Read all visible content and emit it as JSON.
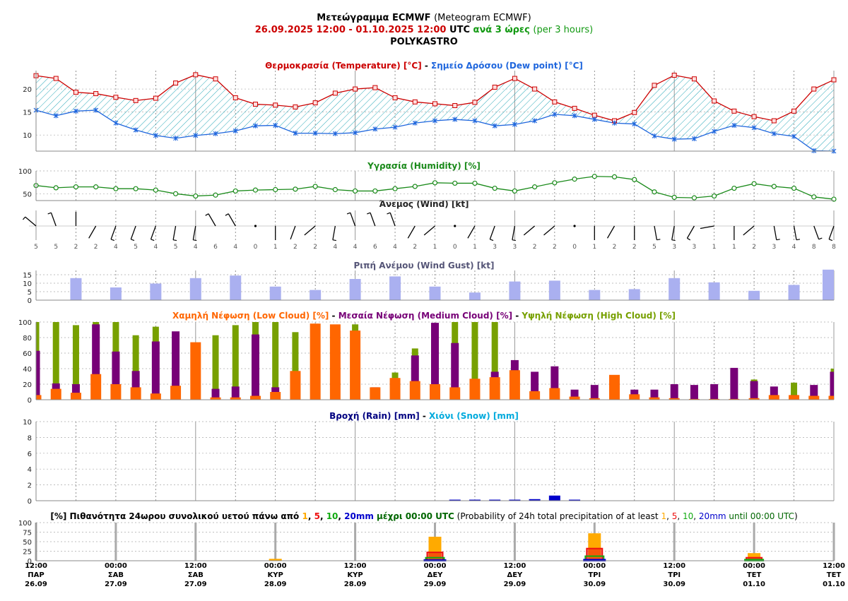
{
  "header": {
    "line1_bold": "Μετεώγραμμα ECMWF",
    "line1_rest": "(Meteogram ECMWF)",
    "line2_period": "26.09.2025 12:00 - 01.10.2025 12:00",
    "line2_utc": "UTC",
    "line2_step_gr": "ανά 3 ώρες",
    "line2_step_en": "(per 3 hours)",
    "location": "POLYKASTRO"
  },
  "panels": {
    "temperature": {
      "title_a": "Θερμοκρασία (Temperature) [°C]",
      "sep": " - ",
      "title_b": "Σημείο Δρόσου (Dew point) [°C]"
    },
    "humidity": {
      "title": "Υγρασία (Humidity) [%]"
    },
    "wind": {
      "title": "Άνεμος (Wind) [kt]"
    },
    "gust": {
      "title": "Ριπή Ανέμου (Wind Gust) [kt]"
    },
    "cloud": {
      "title_low": "Χαμηλή Νέφωση (Low Cloud) [%]",
      "title_mid": "Μεσαία Νέφωση (Medium Cloud) [%]",
      "title_high": "Υψηλή Νέφωση (High Cloud) [%]",
      "sep": " - "
    },
    "rain": {
      "title_rain": "Βροχή (Rain) [mm]",
      "sep": " - ",
      "title_snow": "Χιόνι (Snow) [mm]"
    },
    "prob": {
      "p1": "[%] Πιθανότητα 24ωρου συνολικού υετού πάνω από ",
      "t1": "1",
      "c1": ", ",
      "t5": "5",
      "c2": ", ",
      "t10": "10",
      "c3": ", ",
      "t20": "20mm",
      "p2": " μέχρι 00:00 UTC",
      "p3": " (Probability of 24h total precipitation of at least ",
      "e1": "1",
      "ec1": ", ",
      "e5": "5",
      "ec2": ", ",
      "e10": "10",
      "ec3": ", ",
      "e20": "20mm",
      "e_until": " until 00:00 UTC",
      "p4": ")"
    }
  },
  "colors": {
    "temperature": "#cc0000",
    "dewpoint": "#1f66dd",
    "hatch": "#2aa8b8",
    "humidity": "#1a8a1a",
    "gust": "#aab0f0",
    "low_cloud": "#ff6600",
    "medium_cloud": "#770077",
    "high_cloud": "#77a000",
    "rain": "#0000cc",
    "snow": "#00aadd",
    "p1": "#ffaa00",
    "p5": "#ee1111",
    "p10": "#11aa11",
    "p20": "#0000cc"
  },
  "chart_data": [
    {
      "type": "line",
      "title": "Θερμοκρασία (Temperature) [°C] - Σημείο Δρόσου (Dew point) [°C]",
      "step_hours": 3,
      "ylim": [
        6.5,
        24
      ],
      "yticks": [
        10,
        15,
        20
      ],
      "series": [
        {
          "name": "Θερμοκρασία (Temperature) [°C]",
          "values": [
            22.9,
            22.3,
            19.3,
            19.0,
            18.2,
            17.5,
            18.0,
            21.3,
            23.1,
            22.2,
            18.1,
            16.7,
            16.5,
            16.1,
            17.0,
            19.1,
            20.0,
            20.3,
            18.1,
            17.2,
            16.8,
            16.4,
            17.1,
            20.4,
            22.3,
            20.0,
            17.2,
            15.8,
            14.3,
            13.1,
            14.9,
            20.8,
            23.0,
            22.2,
            17.4,
            15.2,
            14.0,
            13.1,
            15.2,
            20.0,
            22.0
          ]
        },
        {
          "name": "Σημείο Δρόσου (Dew point) [°C]",
          "values": [
            15.4,
            14.2,
            15.2,
            15.4,
            12.6,
            11.1,
            9.9,
            9.3,
            9.9,
            10.3,
            10.9,
            12.0,
            12.1,
            10.4,
            10.4,
            10.3,
            10.5,
            11.3,
            11.7,
            12.6,
            13.1,
            13.4,
            13.1,
            12.0,
            12.3,
            13.1,
            14.5,
            14.2,
            13.4,
            12.6,
            12.4,
            9.8,
            9.1,
            9.2,
            10.8,
            12.1,
            11.6,
            10.3,
            9.7,
            6.6,
            6.5
          ]
        }
      ]
    },
    {
      "type": "line",
      "title": "Υγρασία (Humidity) [%]",
      "ylim": [
        35,
        100
      ],
      "yticks": [
        50,
        100
      ],
      "series": [
        {
          "name": "Υγρασία (Humidity) [%]",
          "values": [
            68,
            63,
            65,
            65,
            61,
            61,
            58,
            50,
            45,
            47,
            56,
            58,
            59,
            60,
            66,
            59,
            56,
            56,
            61,
            66,
            74,
            73,
            73,
            62,
            56,
            65,
            74,
            82,
            88,
            87,
            81,
            54,
            42,
            41,
            45,
            62,
            72,
            66,
            62,
            43,
            38
          ]
        }
      ]
    },
    {
      "type": "wind_barbs",
      "title": "Άνεμος (Wind) [kt]",
      "speed_kt": [
        5,
        5,
        2,
        2,
        4,
        5,
        4,
        5,
        4,
        6,
        4,
        0,
        1,
        2,
        2,
        4,
        4,
        6,
        4,
        2,
        1,
        0,
        1,
        3,
        3,
        2,
        2,
        0,
        1,
        2,
        2,
        5,
        3,
        3,
        1,
        1,
        2,
        3,
        4,
        8,
        8
      ],
      "direction_deg": [
        230,
        200,
        180,
        330,
        340,
        340,
        340,
        350,
        350,
        210,
        210,
        0,
        0,
        340,
        310,
        350,
        200,
        200,
        200,
        330,
        310,
        0,
        330,
        340,
        350,
        310,
        310,
        0,
        0,
        330,
        0,
        10,
        350,
        330,
        280,
        0,
        310,
        10,
        10,
        20,
        340
      ]
    },
    {
      "type": "bar",
      "title": "Ριπή Ανέμου (Wind Gust) [kt]",
      "ylim": [
        0,
        17.5
      ],
      "yticks": [
        0,
        5,
        10,
        15
      ],
      "every_n_steps": 2,
      "values": [
        13,
        7.5,
        9.8,
        13,
        14.5,
        8,
        6,
        12.5,
        14,
        8,
        4.5,
        11,
        11.5,
        6,
        6.5,
        13,
        10.5,
        5.5,
        9,
        18
      ]
    },
    {
      "type": "bar",
      "title": "Χαμηλή Νέφωση (Low Cloud) [%] - Μεσαία Νέφωση (Medium Cloud) [%] - Υψηλή Νέφωση (High Cloud) [%]",
      "ylim": [
        0,
        100
      ],
      "yticks": [
        0,
        20,
        40,
        60,
        80,
        100
      ],
      "series": [
        {
          "name": "Χαμηλή Νέφωση (Low Cloud) [%]",
          "values": [
            6,
            14,
            9,
            33,
            20,
            16,
            8,
            18,
            74,
            3,
            3,
            5,
            10,
            37,
            98,
            97,
            89,
            16,
            28,
            24,
            20,
            16,
            27,
            29,
            38,
            11,
            15,
            4,
            2,
            32,
            7,
            3,
            2,
            1,
            1,
            1,
            2,
            6,
            6,
            5,
            5
          ]
        },
        {
          "name": "Μεσαία Νέφωση (Medium Cloud) [%]",
          "values": [
            63,
            21,
            20,
            97,
            62,
            37,
            75,
            88,
            0,
            14,
            17,
            84,
            16,
            0,
            0,
            0,
            0,
            16,
            0,
            57,
            99,
            73,
            0,
            36,
            51,
            36,
            43,
            13,
            19,
            0,
            13,
            13,
            20,
            19,
            20,
            41,
            24,
            17,
            6,
            19,
            36
          ]
        },
        {
          "name": "Υψηλή Νέφωση (High Cloud) [%]",
          "values": [
            100,
            100,
            96,
            100,
            100,
            83,
            94,
            0,
            0,
            83,
            96,
            100,
            100,
            87,
            0,
            0,
            97,
            0,
            35,
            66,
            75,
            100,
            100,
            100,
            0,
            0,
            0,
            0,
            0,
            0,
            0,
            0,
            0,
            0,
            0,
            0,
            26,
            0,
            22,
            0,
            40
          ]
        }
      ]
    },
    {
      "type": "bar",
      "title": "Βροχή (Rain) [mm] - Χιόνι (Snow) [mm]",
      "ylim": [
        0,
        10
      ],
      "yticks": [
        0,
        2,
        4,
        6,
        8,
        10
      ],
      "series": [
        {
          "name": "Βροχή (Rain) [mm]",
          "values": [
            0,
            0,
            0,
            0,
            0,
            0,
            0,
            0,
            0,
            0,
            0,
            0,
            0,
            0,
            0,
            0,
            0,
            0,
            0,
            0,
            0,
            0.08,
            0.08,
            0.08,
            0.08,
            0.2,
            0.65,
            0.08,
            0,
            0,
            0,
            0,
            0,
            0,
            0,
            0,
            0,
            0,
            0,
            0,
            0
          ]
        },
        {
          "name": "Χιόνι (Snow) [mm]",
          "values": [
            0,
            0,
            0,
            0,
            0,
            0,
            0,
            0,
            0,
            0,
            0,
            0,
            0,
            0,
            0,
            0,
            0,
            0,
            0,
            0,
            0,
            0,
            0,
            0,
            0,
            0,
            0,
            0,
            0,
            0,
            0,
            0,
            0,
            0,
            0,
            0,
            0,
            0,
            0,
            0,
            0
          ]
        }
      ]
    },
    {
      "type": "bar",
      "title": "[%] Πιθανότητα 24ωρου συνολικού υετού πάνω από 1, 5, 10, 20mm μέχρι 00:00 UTC",
      "ylim": [
        0,
        100
      ],
      "yticks": [
        0,
        25,
        50,
        75,
        100
      ],
      "categories": [
        "28.09 00:00",
        "29.09 00:00",
        "30.09 00:00",
        "01.10 00:00"
      ],
      "series": [
        {
          "name": "1",
          "values": [
            5,
            63,
            72,
            20
          ]
        },
        {
          "name": "5",
          "values": [
            0,
            22,
            32,
            8
          ]
        },
        {
          "name": "10",
          "values": [
            0,
            8,
            12,
            3
          ]
        },
        {
          "name": "20mm",
          "values": [
            0,
            2,
            3,
            0
          ]
        }
      ]
    }
  ],
  "time_axis": {
    "step_labels": [
      "12:00",
      "00:00",
      "12:00",
      "00:00",
      "12:00",
      "00:00",
      "12:00",
      "00:00",
      "12:00",
      "00:00",
      "12:00"
    ],
    "day_labels": [
      "ΠΑΡ",
      "ΣΑΒ",
      "ΣΑΒ",
      "ΚΥΡ",
      "ΚΥΡ",
      "ΔΕΥ",
      "ΔΕΥ",
      "ΤΡΙ",
      "ΤΡΙ",
      "ΤΕΤ",
      "ΤΕΤ"
    ],
    "date_labels": [
      "26.09",
      "27.09",
      "27.09",
      "28.09",
      "28.09",
      "29.09",
      "29.09",
      "30.09",
      "30.09",
      "01.10",
      "01.10"
    ]
  }
}
